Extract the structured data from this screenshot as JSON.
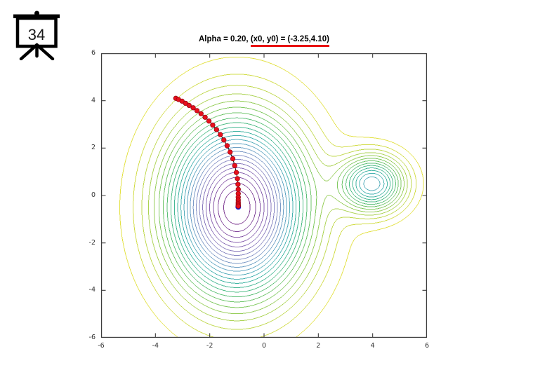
{
  "slide": {
    "number": "34",
    "icon_color": "#000000"
  },
  "header": {
    "title_prefix": "Alpha = 0.20, ",
    "title_underlined": "(x0, y0) = (-3.25,4.10)",
    "underline_color": "#e81010"
  },
  "axes": {
    "spine_color": "#3d3d3d",
    "tick_label_color": "#333333"
  },
  "chart_data": {
    "type": "contour",
    "title": "Alpha = 0.20, (x0, y0) = (-3.25,4.10)",
    "alpha": 0.2,
    "start_point": [
      -3.25,
      4.1
    ],
    "xlim": [
      -6,
      6
    ],
    "ylim": [
      -6,
      6
    ],
    "xticks": [
      -6,
      -4,
      -2,
      0,
      2,
      4,
      6
    ],
    "yticks": [
      -6,
      -4,
      -2,
      0,
      2,
      4,
      6
    ],
    "grid": false,
    "legend": null,
    "surface": {
      "description": "cost surface with deep minimum near (-1,-0.5) and shallow minimum near (4,0.5)",
      "gaussians": [
        {
          "amplitude": -1.0,
          "cx": -1.0,
          "cy": -0.5,
          "sx": 1.7,
          "sy": 2.5
        },
        {
          "amplitude": -0.54,
          "cx": 4.0,
          "cy": 0.5,
          "sx": 0.82,
          "sy": 0.82
        }
      ]
    },
    "contours": {
      "n_levels": 24,
      "level_min": -1.0,
      "level_max": 0.0,
      "colormap_stops": [
        [
          0.0,
          "#7a2a86"
        ],
        [
          0.18,
          "#8a68b4"
        ],
        [
          0.32,
          "#8793c7"
        ],
        [
          0.45,
          "#5fa8c3"
        ],
        [
          0.54,
          "#3eb3ab"
        ],
        [
          0.64,
          "#4dbc85"
        ],
        [
          0.75,
          "#7cc861"
        ],
        [
          0.87,
          "#bcd750"
        ],
        [
          1.0,
          "#f5e53e"
        ]
      ]
    },
    "descent_path": {
      "marker_color": "#e8101c",
      "marker_edge_color": "#8f0010",
      "line_color": "#1a1a1a",
      "final_marker_color": "#2222dd",
      "points": [
        [
          -3.25,
          4.1
        ],
        [
          -3.15,
          4.05
        ],
        [
          -3.02,
          3.98
        ],
        [
          -2.89,
          3.89
        ],
        [
          -2.76,
          3.8
        ],
        [
          -2.61,
          3.7
        ],
        [
          -2.47,
          3.58
        ],
        [
          -2.32,
          3.45
        ],
        [
          -2.17,
          3.3
        ],
        [
          -2.03,
          3.14
        ],
        [
          -1.89,
          2.97
        ],
        [
          -1.75,
          2.78
        ],
        [
          -1.61,
          2.57
        ],
        [
          -1.48,
          2.34
        ],
        [
          -1.36,
          2.1
        ],
        [
          -1.25,
          1.83
        ],
        [
          -1.15,
          1.55
        ],
        [
          -1.08,
          1.26
        ],
        [
          -1.02,
          0.97
        ],
        [
          -0.98,
          0.71
        ],
        [
          -0.96,
          0.47
        ],
        [
          -0.95,
          0.26
        ],
        [
          -0.95,
          0.08
        ],
        [
          -0.95,
          -0.07
        ],
        [
          -0.95,
          -0.19
        ],
        [
          -0.95,
          -0.28
        ],
        [
          -0.95,
          -0.35
        ],
        [
          -0.95,
          -0.41
        ],
        [
          -0.95,
          -0.45
        ]
      ],
      "final_point": [
        -0.95,
        -0.48
      ]
    }
  }
}
